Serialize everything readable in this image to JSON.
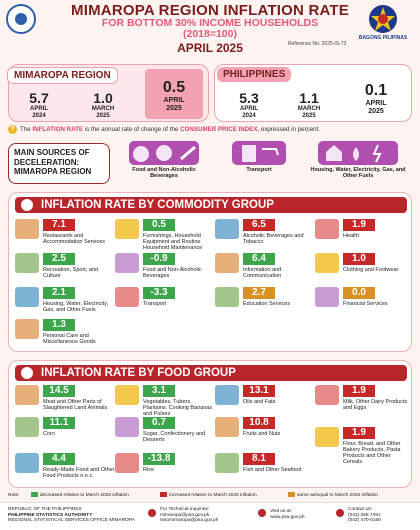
{
  "header": {
    "title": "MIMAROPA REGION INFLATION RATE",
    "subtitle_line1": "FOR BOTTOM 30% INCOME HOUSEHOLDS",
    "subtitle_line2": "(2018=100)",
    "month": "APRIL 2025",
    "reference": "Reference No. 2025-IS-73",
    "right_logo_label": "BAGONG PILIPINAS"
  },
  "region_panel": {
    "tag": "MIMAROPA REGION",
    "cards": [
      {
        "value": "5.7",
        "label1": "APRIL",
        "label2": "2024"
      },
      {
        "value": "1.0",
        "label1": "MARCH",
        "label2": "2025"
      },
      {
        "value": "0.5",
        "label1": "APRIL",
        "label2": "2025"
      }
    ]
  },
  "ph_panel": {
    "tag": "PHILIPPINES",
    "cards": [
      {
        "value": "5.3",
        "label1": "APRIL",
        "label2": "2024"
      },
      {
        "value": "1.1",
        "label1": "MARCH",
        "label2": "2025"
      },
      {
        "value": "0.1",
        "label1": "APRIL",
        "label2": "2025"
      }
    ]
  },
  "definition": {
    "pre": "The",
    "term": "INFLATION RATE",
    "mid": "is the annual rate of change of the",
    "term2": "CONSUMER PRICE INDEX",
    "post": ", expressed in percent."
  },
  "sources": {
    "title": "MAIN SOURCES OF DECELERATION: MIMAROPA REGION",
    "items": [
      {
        "label": "Food and Non-Alcoholic Beverages",
        "icon": "food-icon"
      },
      {
        "label": "Transport",
        "icon": "fuel-icon"
      },
      {
        "label": "Housing, Water, Electricity, Gas, and Other Fuels",
        "icon": "house-icon"
      }
    ]
  },
  "commodity": {
    "title": "INFLATION RATE BY COMMODITY GROUP",
    "items": [
      {
        "value": "7.1",
        "label": "Restaurants and Accommodation Services",
        "status": "red"
      },
      {
        "value": "0.5",
        "label": "Furnishings, Household Equipment and Routine Household Maintenance",
        "status": "green"
      },
      {
        "value": "6.5",
        "label": "Alcoholic Beverages and Tobacco",
        "status": "red"
      },
      {
        "value": "1.9",
        "label": "Health",
        "status": "red"
      },
      {
        "value": "2.5",
        "label": "Recreation, Sport, and Culture",
        "status": "green"
      },
      {
        "value": "-0.9",
        "label": "Food and Non-Alcoholic Beverages",
        "status": "green"
      },
      {
        "value": "6.4",
        "label": "Information and Communication",
        "status": "green"
      },
      {
        "value": "1.0",
        "label": "Clothing and Footwear",
        "status": "red"
      },
      {
        "value": "2.1",
        "label": "Housing, Water, Electricity, Gas, and Other Fuels",
        "status": "green"
      },
      {
        "value": "-3.3",
        "label": "Transport",
        "status": "green"
      },
      {
        "value": "2.7",
        "label": "Education Services",
        "status": "orange"
      },
      {
        "value": "0.0",
        "label": "Financial Services",
        "status": "orange"
      },
      {
        "value": "1.3",
        "label": "Personal Care and Miscellaneous Goods",
        "status": "green"
      }
    ]
  },
  "food": {
    "title": "INFLATION RATE BY FOOD GROUP",
    "items": [
      {
        "value": "14.5",
        "label": "Meat and Other Parts of Slaughtered Land Animals",
        "status": "green"
      },
      {
        "value": "3.1",
        "label": "Vegetables, Tubers, Plantains, Cooking Bananas and Pulses",
        "status": "green"
      },
      {
        "value": "13.1",
        "label": "Oils and Fats",
        "status": "red"
      },
      {
        "value": "1.9",
        "label": "Milk, Other Dairy Products and Eggs",
        "status": "red"
      },
      {
        "value": "11.1",
        "label": "Corn",
        "status": "green"
      },
      {
        "value": "0.7",
        "label": "Sugar, Confectionery and Desserts",
        "status": "green"
      },
      {
        "value": "10.8",
        "label": "Fruits and Nuts",
        "status": "red"
      },
      {
        "value": "1.9",
        "label": "Flour, Bread, and Other Bakery Products, Pasta Products and Other Cereals",
        "status": "red"
      },
      {
        "value": "4.4",
        "label": "Ready-Made Food and Other Food Products n.e.c.",
        "status": "green"
      },
      {
        "value": "-13.8",
        "label": "Rice",
        "status": "green"
      },
      {
        "value": "8.1",
        "label": "Fish and Other Seafood",
        "status": "red"
      }
    ]
  },
  "legend": {
    "note": "Note:",
    "items": [
      {
        "label": "decreased relative to March 2025 inflation",
        "color": "#3da54a"
      },
      {
        "label": "increased relative to March 2025 inflation",
        "color": "#c62828"
      },
      {
        "label": "same as/equal to March 2025 inflation",
        "color": "#d89126"
      }
    ]
  },
  "footer": {
    "org1": "REPUBLIC OF THE PHILIPPINES",
    "org2": "PHILIPPINE STATISTICS AUTHORITY",
    "org3": "REGIONAL STATISTICAL SERVICES OFFICE MIMAROPA",
    "ta_title": "For Technical Inquiries:",
    "ta_email1": "mimaropa@psa.gov.ph",
    "ta_email2": "rssomimaropa@psa.gov.ph",
    "visit": "Visit us at:",
    "web": "www.psa.gov.ph",
    "contact": "Contact us:",
    "phone1": "(043) 288 7491",
    "phone2": "(043) 470-0168"
  }
}
